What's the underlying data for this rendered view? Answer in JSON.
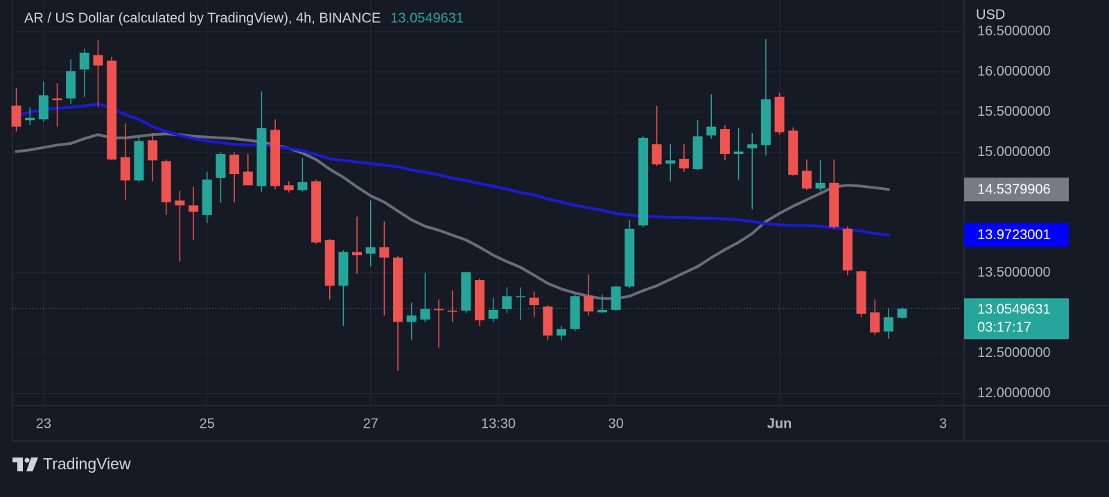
{
  "chart_data": {
    "type": "candlestick",
    "title": "AR / US Dollar (calculated by TradingView), 4h, BINANCE",
    "currency": "USD",
    "countdown": "03:17:17",
    "brand": "TradingView",
    "up_color": "#26a69a",
    "down_color": "#ef5350",
    "grid": true,
    "x": [
      22.6667,
      22.8333,
      23,
      23.1667,
      23.3333,
      23.5,
      23.6667,
      23.8333,
      24,
      24.1667,
      24.3333,
      24.5,
      24.6667,
      24.8333,
      25,
      25.1667,
      25.3333,
      25.5,
      25.6667,
      25.8333,
      26,
      26.1667,
      26.3333,
      26.5,
      26.6667,
      26.8333,
      27,
      27.1667,
      27.3333,
      27.5,
      27.6667,
      27.8333,
      28,
      28.1667,
      28.3333,
      28.5,
      28.6667,
      28.8333,
      29,
      29.1667,
      29.3333,
      29.5,
      29.6667,
      29.8333,
      30,
      30.1667,
      30.3333,
      30.5,
      30.6667,
      30.8333,
      31,
      31.1667,
      31.3333,
      31.5,
      31.6667,
      31.8333,
      32,
      32.1667,
      32.3333,
      32.5,
      32.6667,
      32.8333,
      33,
      33.1667,
      33.3333,
      33.5
    ],
    "open": [
      15.58,
      15.4,
      15.41,
      15.67,
      15.67,
      16.03,
      16.21,
      16.14,
      14.94,
      14.65,
      15.15,
      14.89,
      14.4,
      14.34,
      14.22,
      14.68,
      14.97,
      14.76,
      14.58,
      15.28,
      14.59,
      14.53,
      14.64,
      13.91,
      13.34,
      13.76,
      13.74,
      13.82,
      13.69,
      12.89,
      12.92,
      13.05,
      13.03,
      13.03,
      13.41,
      12.93,
      13.05,
      13.2,
      13.19,
      13.08,
      12.72,
      12.8,
      13.21,
      13.01,
      13.04,
      13.33,
      14.09,
      15.1,
      14.86,
      14.92,
      14.79,
      15.21,
      15.29,
      14.98,
      15.05,
      15.09,
      15.69,
      15.27,
      14.77,
      14.55,
      14.62,
      14.05,
      13.52,
      13.01,
      12.77,
      12.94
    ],
    "high": [
      15.8,
      15.56,
      15.88,
      15.86,
      16.16,
      16.29,
      16.4,
      16.19,
      15.36,
      15.19,
      15.24,
      14.91,
      14.52,
      14.57,
      14.76,
      15.0,
      15.0,
      14.98,
      15.76,
      15.41,
      14.64,
      14.93,
      14.66,
      13.92,
      13.78,
      14.2,
      14.4,
      14.14,
      13.71,
      13.13,
      13.5,
      13.17,
      13.28,
      13.51,
      13.43,
      13.19,
      13.32,
      13.32,
      13.27,
      13.1,
      12.84,
      13.23,
      13.48,
      13.23,
      13.34,
      14.16,
      15.2,
      15.58,
      15.1,
      15.1,
      15.4,
      15.72,
      15.34,
      15.3,
      15.24,
      16.41,
      15.74,
      15.31,
      14.91,
      14.9,
      14.91,
      14.08,
      13.53,
      13.17,
      13.06,
      13.07
    ],
    "low": [
      15.26,
      15.34,
      15.38,
      15.32,
      15.6,
      15.69,
      15.56,
      14.9,
      14.41,
      14.63,
      14.64,
      14.22,
      13.64,
      13.91,
      14.12,
      14.37,
      14.38,
      14.59,
      14.51,
      14.54,
      14.5,
      14.51,
      13.86,
      13.17,
      12.84,
      13.49,
      13.58,
      12.97,
      12.28,
      12.67,
      12.89,
      12.57,
      12.89,
      13.0,
      12.84,
      12.89,
      13.0,
      12.91,
      12.95,
      12.66,
      12.66,
      12.78,
      12.97,
      13.0,
      13.03,
      13.31,
      14.07,
      14.83,
      14.64,
      14.76,
      14.78,
      15.17,
      14.9,
      14.66,
      14.29,
      14.96,
      15.22,
      14.71,
      14.53,
      14.52,
      14.05,
      13.47,
      12.95,
      12.73,
      12.68,
      12.93
    ],
    "close": [
      15.32,
      15.43,
      15.71,
      15.65,
      16.01,
      16.24,
      16.08,
      14.91,
      14.65,
      15.14,
      14.9,
      14.38,
      14.34,
      14.26,
      14.66,
      14.98,
      14.73,
      14.59,
      15.3,
      14.58,
      14.53,
      14.63,
      13.88,
      13.34,
      13.76,
      13.72,
      13.82,
      13.69,
      12.89,
      12.97,
      13.05,
      13.04,
      13.02,
      13.51,
      12.91,
      13.04,
      13.21,
      13.21,
      13.1,
      12.72,
      12.8,
      13.21,
      13.02,
      13.04,
      13.33,
      14.05,
      15.18,
      14.85,
      14.9,
      14.8,
      15.2,
      15.32,
      14.98,
      15.01,
      15.1,
      15.66,
      15.25,
      14.72,
      14.55,
      14.62,
      14.07,
      13.53,
      12.99,
      12.76,
      12.95,
      13.0549631
    ],
    "series": [
      {
        "color": "#6a6d78",
        "label_color": "#787b86",
        "values": [
          15.01,
          15.03,
          15.06,
          15.09,
          15.11,
          15.17,
          15.22,
          15.18,
          15.18,
          15.2,
          15.22,
          15.23,
          15.22,
          15.2,
          15.19,
          15.18,
          15.17,
          15.15,
          15.13,
          15.09,
          15.05,
          14.99,
          14.91,
          14.79,
          14.69,
          14.57,
          14.46,
          14.38,
          14.27,
          14.16,
          14.08,
          14.03,
          13.97,
          13.91,
          13.82,
          13.72,
          13.64,
          13.57,
          13.47,
          13.37,
          13.3,
          13.25,
          13.21,
          13.18,
          13.18,
          13.21,
          13.28,
          13.34,
          13.42,
          13.5,
          13.58,
          13.69,
          13.79,
          13.88,
          13.99,
          14.14,
          14.24,
          14.33,
          14.41,
          14.49,
          14.57,
          14.59,
          14.58,
          14.56,
          14.5379906,
          null
        ]
      },
      {
        "color": "#1a1ad6",
        "label_color": "#0000ff",
        "values": [
          15.46,
          15.5,
          15.53,
          15.55,
          15.56,
          15.58,
          15.6,
          15.55,
          15.47,
          15.41,
          15.32,
          15.26,
          15.21,
          15.17,
          15.14,
          15.12,
          15.1,
          15.09,
          15.09,
          15.07,
          15.05,
          15.02,
          14.97,
          14.92,
          14.9,
          14.88,
          14.86,
          14.84,
          14.82,
          14.78,
          14.75,
          14.72,
          14.68,
          14.65,
          14.61,
          14.58,
          14.54,
          14.5,
          14.47,
          14.42,
          14.38,
          14.34,
          14.31,
          14.28,
          14.24,
          14.22,
          14.2,
          14.2,
          14.19,
          14.19,
          14.18,
          14.18,
          14.17,
          14.16,
          14.14,
          14.11,
          14.1,
          14.09,
          14.09,
          14.08,
          14.06,
          14.04,
          14.02,
          13.99,
          13.9723001,
          null
        ]
      }
    ],
    "xlim": [
      22.62,
      34.25
    ],
    "ylim": [
      11.85,
      16.74
    ],
    "xticks": [
      23,
      25,
      27,
      {
        "value": 28.5625,
        "label": "13:30"
      },
      30,
      {
        "value": 32,
        "label": "Jun",
        "bold": true
      },
      {
        "value": 34,
        "label": "3"
      }
    ],
    "yticks": [
      {
        "value": 16.5,
        "label": "16.5000000"
      },
      {
        "value": 16,
        "label": "16.0000000"
      },
      {
        "value": 15.5,
        "label": "15.5000000"
      },
      {
        "value": 15,
        "label": "15.0000000"
      },
      {
        "value": 13.5,
        "label": "13.5000000"
      },
      {
        "value": 12.5,
        "label": "12.5000000"
      },
      {
        "value": 12,
        "label": "12.0000000"
      }
    ]
  }
}
